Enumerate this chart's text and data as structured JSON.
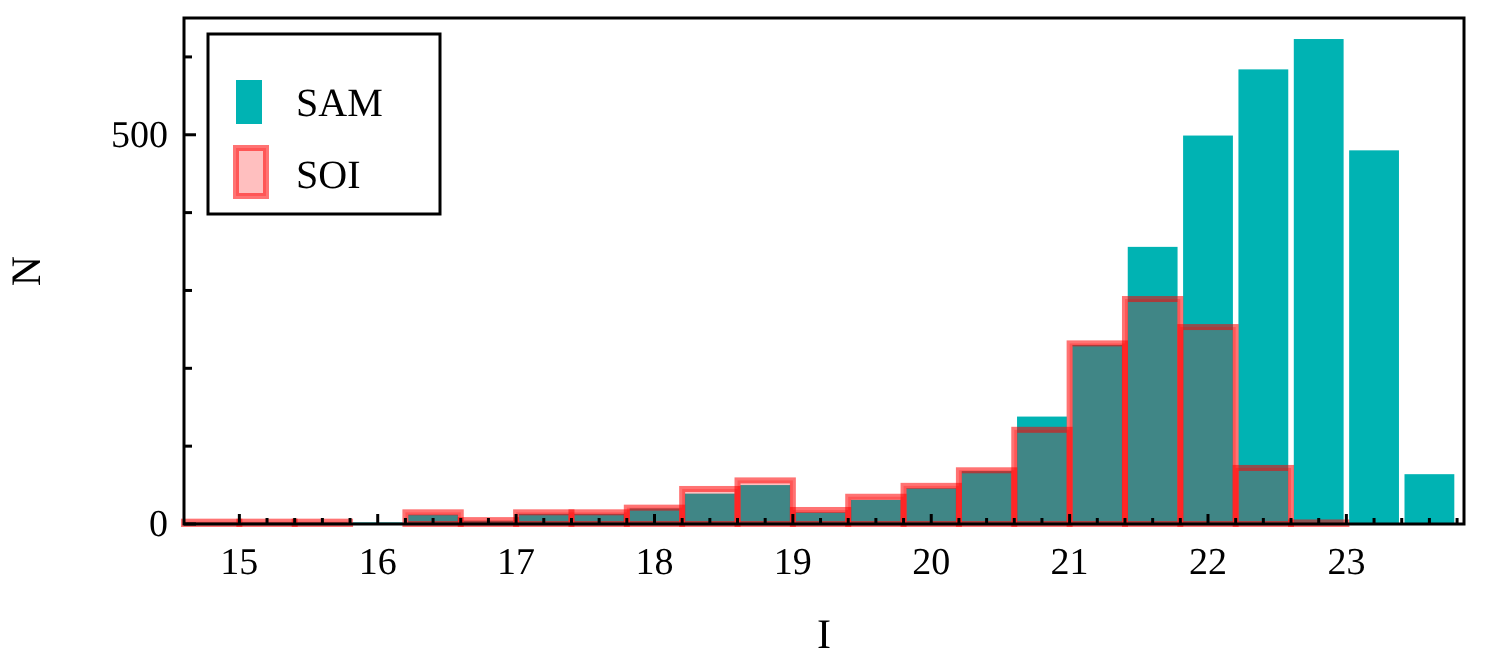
{
  "chart_data": {
    "type": "histogram",
    "xlabel": "I",
    "ylabel": "N",
    "bins": [
      14.6,
      15.0,
      15.4,
      15.8,
      16.2,
      16.6,
      17.0,
      17.4,
      17.8,
      18.2,
      18.6,
      19.0,
      19.4,
      19.8,
      20.2,
      20.6,
      21.0,
      21.4,
      21.8,
      22.2,
      22.6,
      23.0,
      23.4,
      23.8
    ],
    "series": [
      {
        "name": "SAM",
        "color": "#00b3b3",
        "values": [
          2,
          2,
          2,
          2,
          12,
          4,
          13,
          13,
          20,
          39,
          50,
          15,
          31,
          46,
          68,
          138,
          230,
          356,
          499,
          584,
          623,
          480,
          64
        ]
      },
      {
        "name": "SOI",
        "color": "#ff0000",
        "values": [
          3,
          3,
          3,
          0,
          15,
          5,
          15,
          15,
          21,
          45,
          56,
          18,
          35,
          49,
          69,
          121,
          232,
          289,
          253,
          72,
          2,
          0,
          0
        ]
      }
    ],
    "xlim": [
      14.6,
      23.85
    ],
    "xticks": [
      15,
      {
        "value": 15.2,
        "label": null
      },
      {
        "value": 15.4,
        "label": null
      },
      {
        "value": 15.6,
        "label": null
      },
      {
        "value": 15.8,
        "label": null
      },
      16,
      {
        "value": 16.2,
        "label": null
      },
      {
        "value": 16.4,
        "label": null
      },
      {
        "value": 16.6,
        "label": null
      },
      {
        "value": 16.8,
        "label": null
      },
      17,
      {
        "value": 17.2,
        "label": null
      },
      {
        "value": 17.4,
        "label": null
      },
      {
        "value": 17.6,
        "label": null
      },
      {
        "value": 17.8,
        "label": null
      },
      18,
      {
        "value": 18.2,
        "label": null
      },
      {
        "value": 18.4,
        "label": null
      },
      {
        "value": 18.6,
        "label": null
      },
      {
        "value": 18.8,
        "label": null
      },
      19,
      {
        "value": 19.2,
        "label": null
      },
      {
        "value": 19.4,
        "label": null
      },
      {
        "value": 19.6,
        "label": null
      },
      {
        "value": 19.8,
        "label": null
      },
      20,
      {
        "value": 20.2,
        "label": null
      },
      {
        "value": 20.4,
        "label": null
      },
      {
        "value": 20.6,
        "label": null
      },
      {
        "value": 20.8,
        "label": null
      },
      21,
      {
        "value": 21.2,
        "label": null
      },
      {
        "value": 21.4,
        "label": null
      },
      {
        "value": 21.6,
        "label": null
      },
      {
        "value": 21.8,
        "label": null
      },
      22,
      {
        "value": 22.2,
        "label": null
      },
      {
        "value": 22.4,
        "label": null
      },
      {
        "value": 22.6,
        "label": null
      },
      {
        "value": 22.8,
        "label": null
      },
      23,
      {
        "value": 23.2,
        "label": null
      },
      {
        "value": 23.4,
        "label": null
      },
      {
        "value": 23.6,
        "label": null
      },
      {
        "value": 23.8,
        "label": null
      }
    ],
    "ylim": [
      0,
      650
    ],
    "yticks": [
      0,
      {
        "value": 100,
        "label": null
      },
      {
        "value": 200,
        "label": null
      },
      {
        "value": 300,
        "label": null
      },
      {
        "value": 400,
        "label": null
      },
      500,
      {
        "value": 600,
        "label": null
      }
    ],
    "legend": "top left",
    "grid": false
  }
}
